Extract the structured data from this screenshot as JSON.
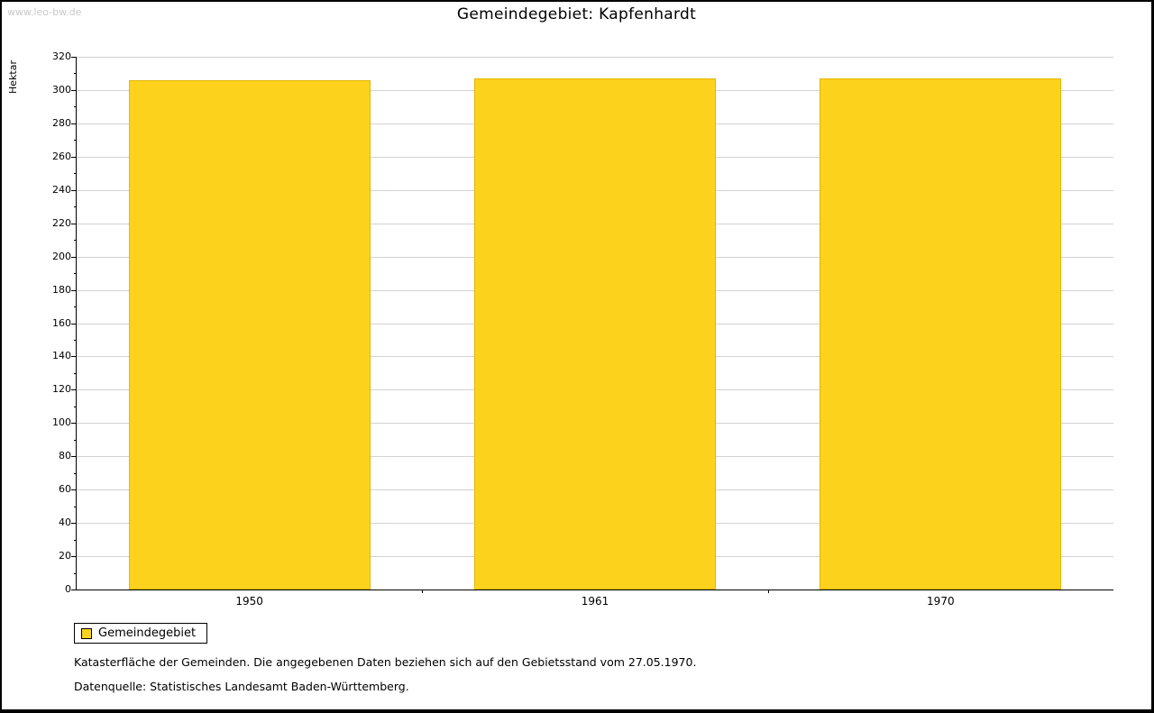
{
  "watermark": "www.leo-bw.de",
  "chart_data": {
    "type": "bar",
    "title": "Gemeindegebiet: Kapfenhardt",
    "categories": [
      "1950",
      "1961",
      "1970"
    ],
    "series": [
      {
        "name": "Gemeindegebiet",
        "values": [
          306,
          307,
          307
        ]
      }
    ],
    "xlabel": "",
    "ylabel": "Hektar",
    "ylim": [
      0,
      320
    ],
    "ytick_step": 20,
    "minor_tick_step": 10,
    "grid": true,
    "legend_position": "bottom-left",
    "bar_color": "#fcd21c",
    "bar_border_color": "#e3b705"
  },
  "footnotes": [
    "Katasterfläche der Gemeinden. Die angegebenen Daten beziehen sich auf den Gebietsstand vom 27.05.1970.",
    "Datenquelle: Statistisches Landesamt Baden-Württemberg."
  ]
}
